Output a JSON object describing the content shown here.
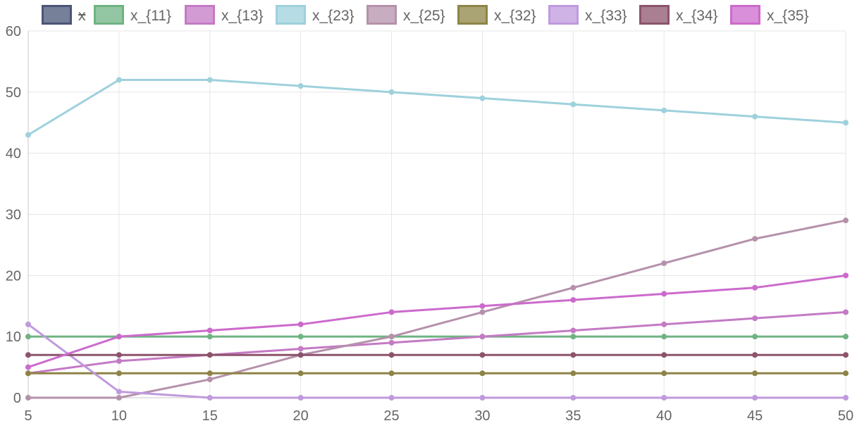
{
  "chart_data": {
    "type": "line",
    "title": "",
    "xlabel": "",
    "ylabel": "",
    "x": [
      5,
      10,
      15,
      20,
      25,
      30,
      35,
      40,
      45,
      50
    ],
    "xlim": [
      5,
      50
    ],
    "ylim": [
      0,
      60
    ],
    "y_ticks": [
      0,
      10,
      20,
      30,
      40,
      50,
      60
    ],
    "x_ticks": [
      5,
      10,
      15,
      20,
      25,
      30,
      35,
      40,
      45,
      50
    ],
    "grid": true,
    "legend_position": "top",
    "series": [
      {
        "name": "x",
        "color": "#4a5577",
        "values": [
          null,
          null,
          null,
          null,
          null,
          null,
          null,
          null,
          null,
          null
        ],
        "hidden": true
      },
      {
        "name": "x_{11}",
        "color": "#6fb383",
        "values": [
          10,
          10,
          10,
          10,
          10,
          10,
          10,
          10,
          10,
          10
        ]
      },
      {
        "name": "x_{13}",
        "color": "#c47ac4",
        "values": [
          4,
          6,
          7,
          8,
          9,
          10,
          11,
          12,
          13,
          14
        ]
      },
      {
        "name": "x_{23}",
        "color": "#9ed1dc",
        "values": [
          43,
          52,
          52,
          51,
          50,
          49,
          48,
          47,
          46,
          45
        ]
      },
      {
        "name": "x_{25}",
        "color": "#b591ab",
        "values": [
          0,
          0,
          3,
          7,
          10,
          14,
          18,
          22,
          26,
          29
        ]
      },
      {
        "name": "x_{32}",
        "color": "#8e8446",
        "values": [
          4,
          4,
          4,
          4,
          4,
          4,
          4,
          4,
          4,
          4
        ]
      },
      {
        "name": "x_{33}",
        "color": "#bf9add",
        "values": [
          12,
          1,
          0,
          0,
          0,
          0,
          0,
          0,
          0,
          0
        ]
      },
      {
        "name": "x_{34}",
        "color": "#8c546c",
        "values": [
          7,
          7,
          7,
          7,
          7,
          7,
          7,
          7,
          7,
          7
        ]
      },
      {
        "name": "x_{35}",
        "color": "#cc6acc",
        "values": [
          5,
          10,
          11,
          12,
          14,
          15,
          16,
          17,
          18,
          20
        ]
      }
    ]
  }
}
